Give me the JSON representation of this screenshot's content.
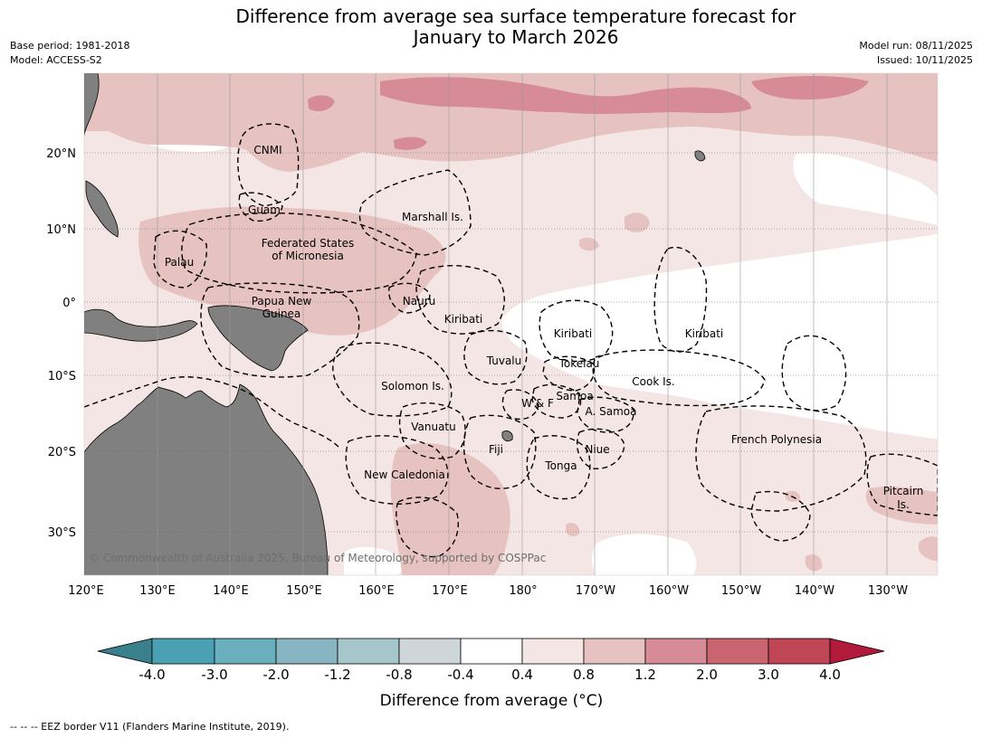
{
  "title_line1": "Difference from average sea surface temperature forecast for",
  "title_line2": "January to March 2026",
  "meta_left": {
    "base_period": "Base period: 1981-2018",
    "model": "Model: ACCESS-S2"
  },
  "meta_right": {
    "model_run": "Model run: 08/11/2025",
    "issued": "Issued: 10/11/2025"
  },
  "lat_ticks": [
    "20°N",
    "10°N",
    "0°",
    "10°S",
    "20°S",
    "30°S"
  ],
  "lon_ticks": [
    "120°E",
    "130°E",
    "140°E",
    "150°E",
    "160°E",
    "170°E",
    "180°",
    "170°W",
    "160°W",
    "150°W",
    "140°W",
    "130°W"
  ],
  "regions": {
    "cnmi": "CNMI",
    "guam": "Guam",
    "marshall": "Marshall Is.",
    "fsm1": "Federated States",
    "fsm2": "of Micronesia",
    "palau": "Palau",
    "png1": "Papua New",
    "png2": "Guinea",
    "nauru": "Nauru",
    "kiribati_w": "Kiribati",
    "kiribati_c": "Kiribati",
    "kiribati_e": "Kiribati",
    "tuvalu": "Tuvalu",
    "tokelau": "Tokelau",
    "cook": "Cook Is.",
    "solomon": "Solomon Is.",
    "samoa": "Samoa",
    "wf": "W & F",
    "asamoa": "A. Samoa",
    "vanuatu": "Vanuatu",
    "fiji": "Fiji",
    "niue": "Niue",
    "tonga": "Tonga",
    "newcal": "New Caledonia",
    "frpoly": "French Polynesia",
    "pitcairn1": "Pitcairn",
    "pitcairn2": "Is."
  },
  "copyright": "© Commonwealth of Australia 2025, Bureau of Meteorology, supported by COSPPac",
  "colorbar": {
    "title": "Difference from average (°C)",
    "labels": [
      "-4.0",
      "-3.0",
      "-2.0",
      "-1.2",
      "-0.8",
      "-0.4",
      "0.4",
      "0.8",
      "1.2",
      "2.0",
      "3.0",
      "4.0"
    ],
    "colors": [
      "#3a7f8c",
      "#4aa1b4",
      "#6aafbe",
      "#87b6c2",
      "#a6c6cb",
      "#cfd6d9",
      "#ffffff",
      "#f4e6e5",
      "#e6c3c0",
      "#d68b96",
      "#c9656f",
      "#c04656",
      "#b11a3a"
    ]
  },
  "footnote": "--  --  -- EEZ border V11 (Flanders Marine Institute, 2019).",
  "colors": {
    "land": "#808080",
    "anom_04_08": "#f4e6e5",
    "anom_08_12": "#e6c3c0",
    "anom_12_20": "#d68b96"
  }
}
